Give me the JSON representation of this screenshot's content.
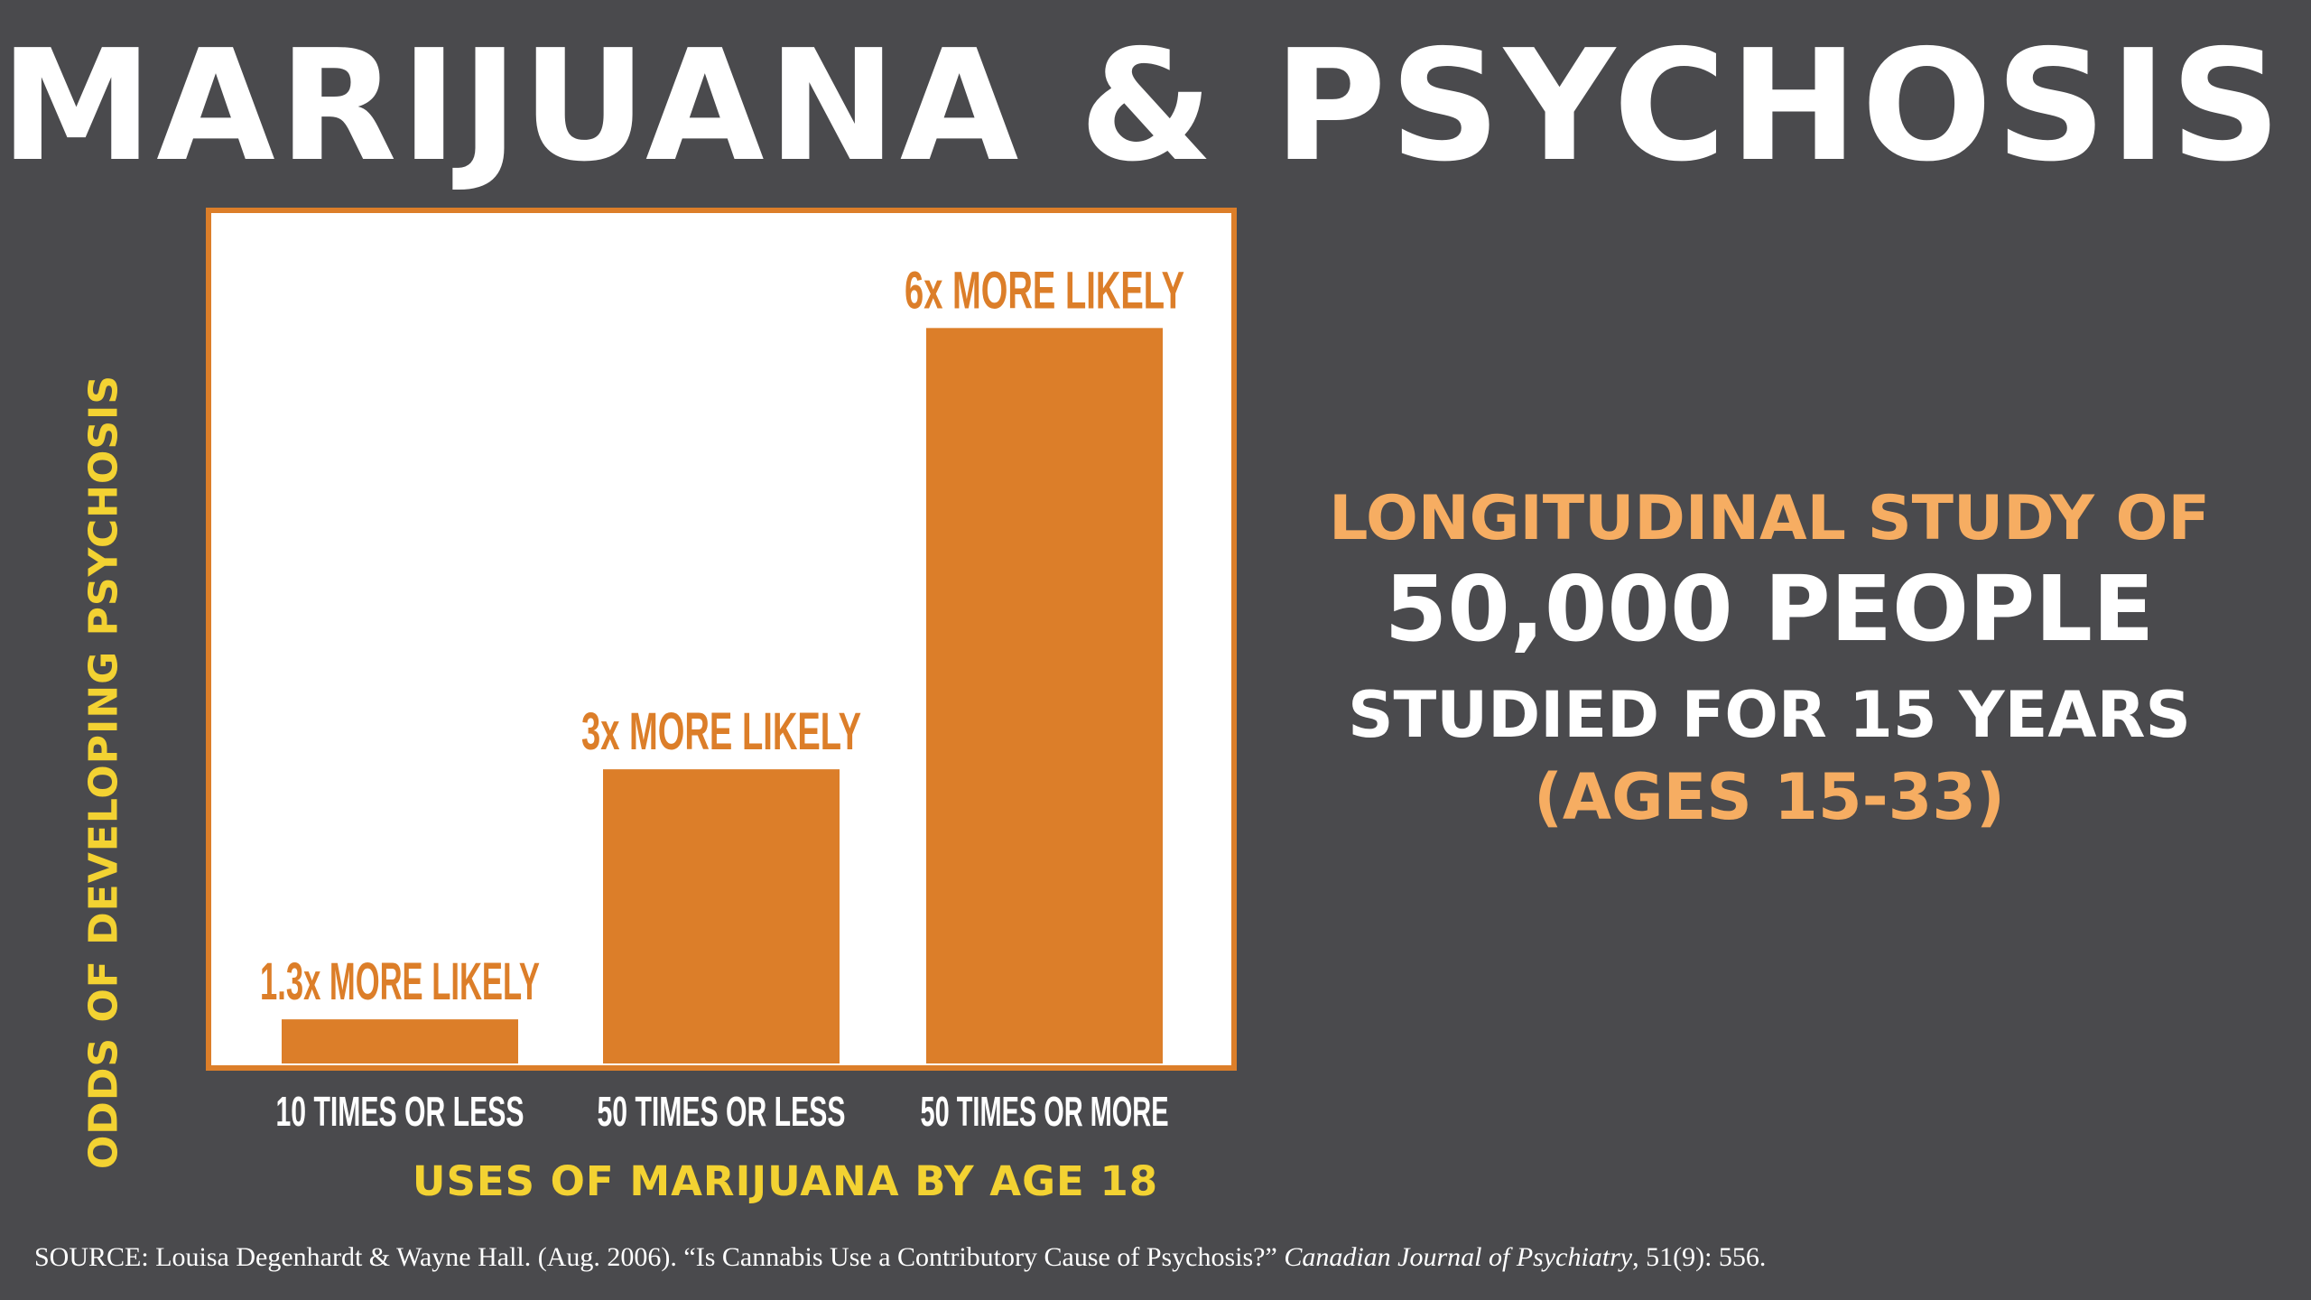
{
  "title": "MARIJUANA & PSYCHOSIS",
  "chart_data": {
    "type": "bar",
    "title": "MARIJUANA & PSYCHOSIS",
    "xlabel": "USES OF MARIJUANA BY AGE 18",
    "ylabel": "ODDS OF DEVELOPING PSYCHOSIS",
    "categories": [
      "10 TIMES OR LESS",
      "50 TIMES OR LESS",
      "50 TIMES OR MORE"
    ],
    "values": [
      1.3,
      3,
      6
    ],
    "data_labels": [
      "1.3x MORE LIKELY",
      "3x MORE LIKELY",
      "6x MORE LIKELY"
    ],
    "ylim": [
      1,
      6.8
    ],
    "grid": false,
    "bar_color": "#dc7e29",
    "frame_color": "#dc7e29",
    "plot_background": "#ffffff"
  },
  "info": {
    "line1": "LONGITUDINAL STUDY OF",
    "line2": "50,000 PEOPLE",
    "line3": "STUDIED FOR 15 YEARS",
    "line4": "(AGES 15-33)"
  },
  "source": {
    "prefix": "SOURCE: Louisa Degenhardt & Wayne Hall. (Aug. 2006). “Is Cannabis Use a Contributory Cause of Psychosis?” ",
    "journal": "Canadian Journal of Psychiatry",
    "suffix": ", 51(9): 556."
  },
  "colors": {
    "background": "#4a4a4d",
    "accent_orange": "#dc7e29",
    "light_orange": "#f6ad62",
    "yellow": "#f3d232",
    "white": "#ffffff"
  }
}
